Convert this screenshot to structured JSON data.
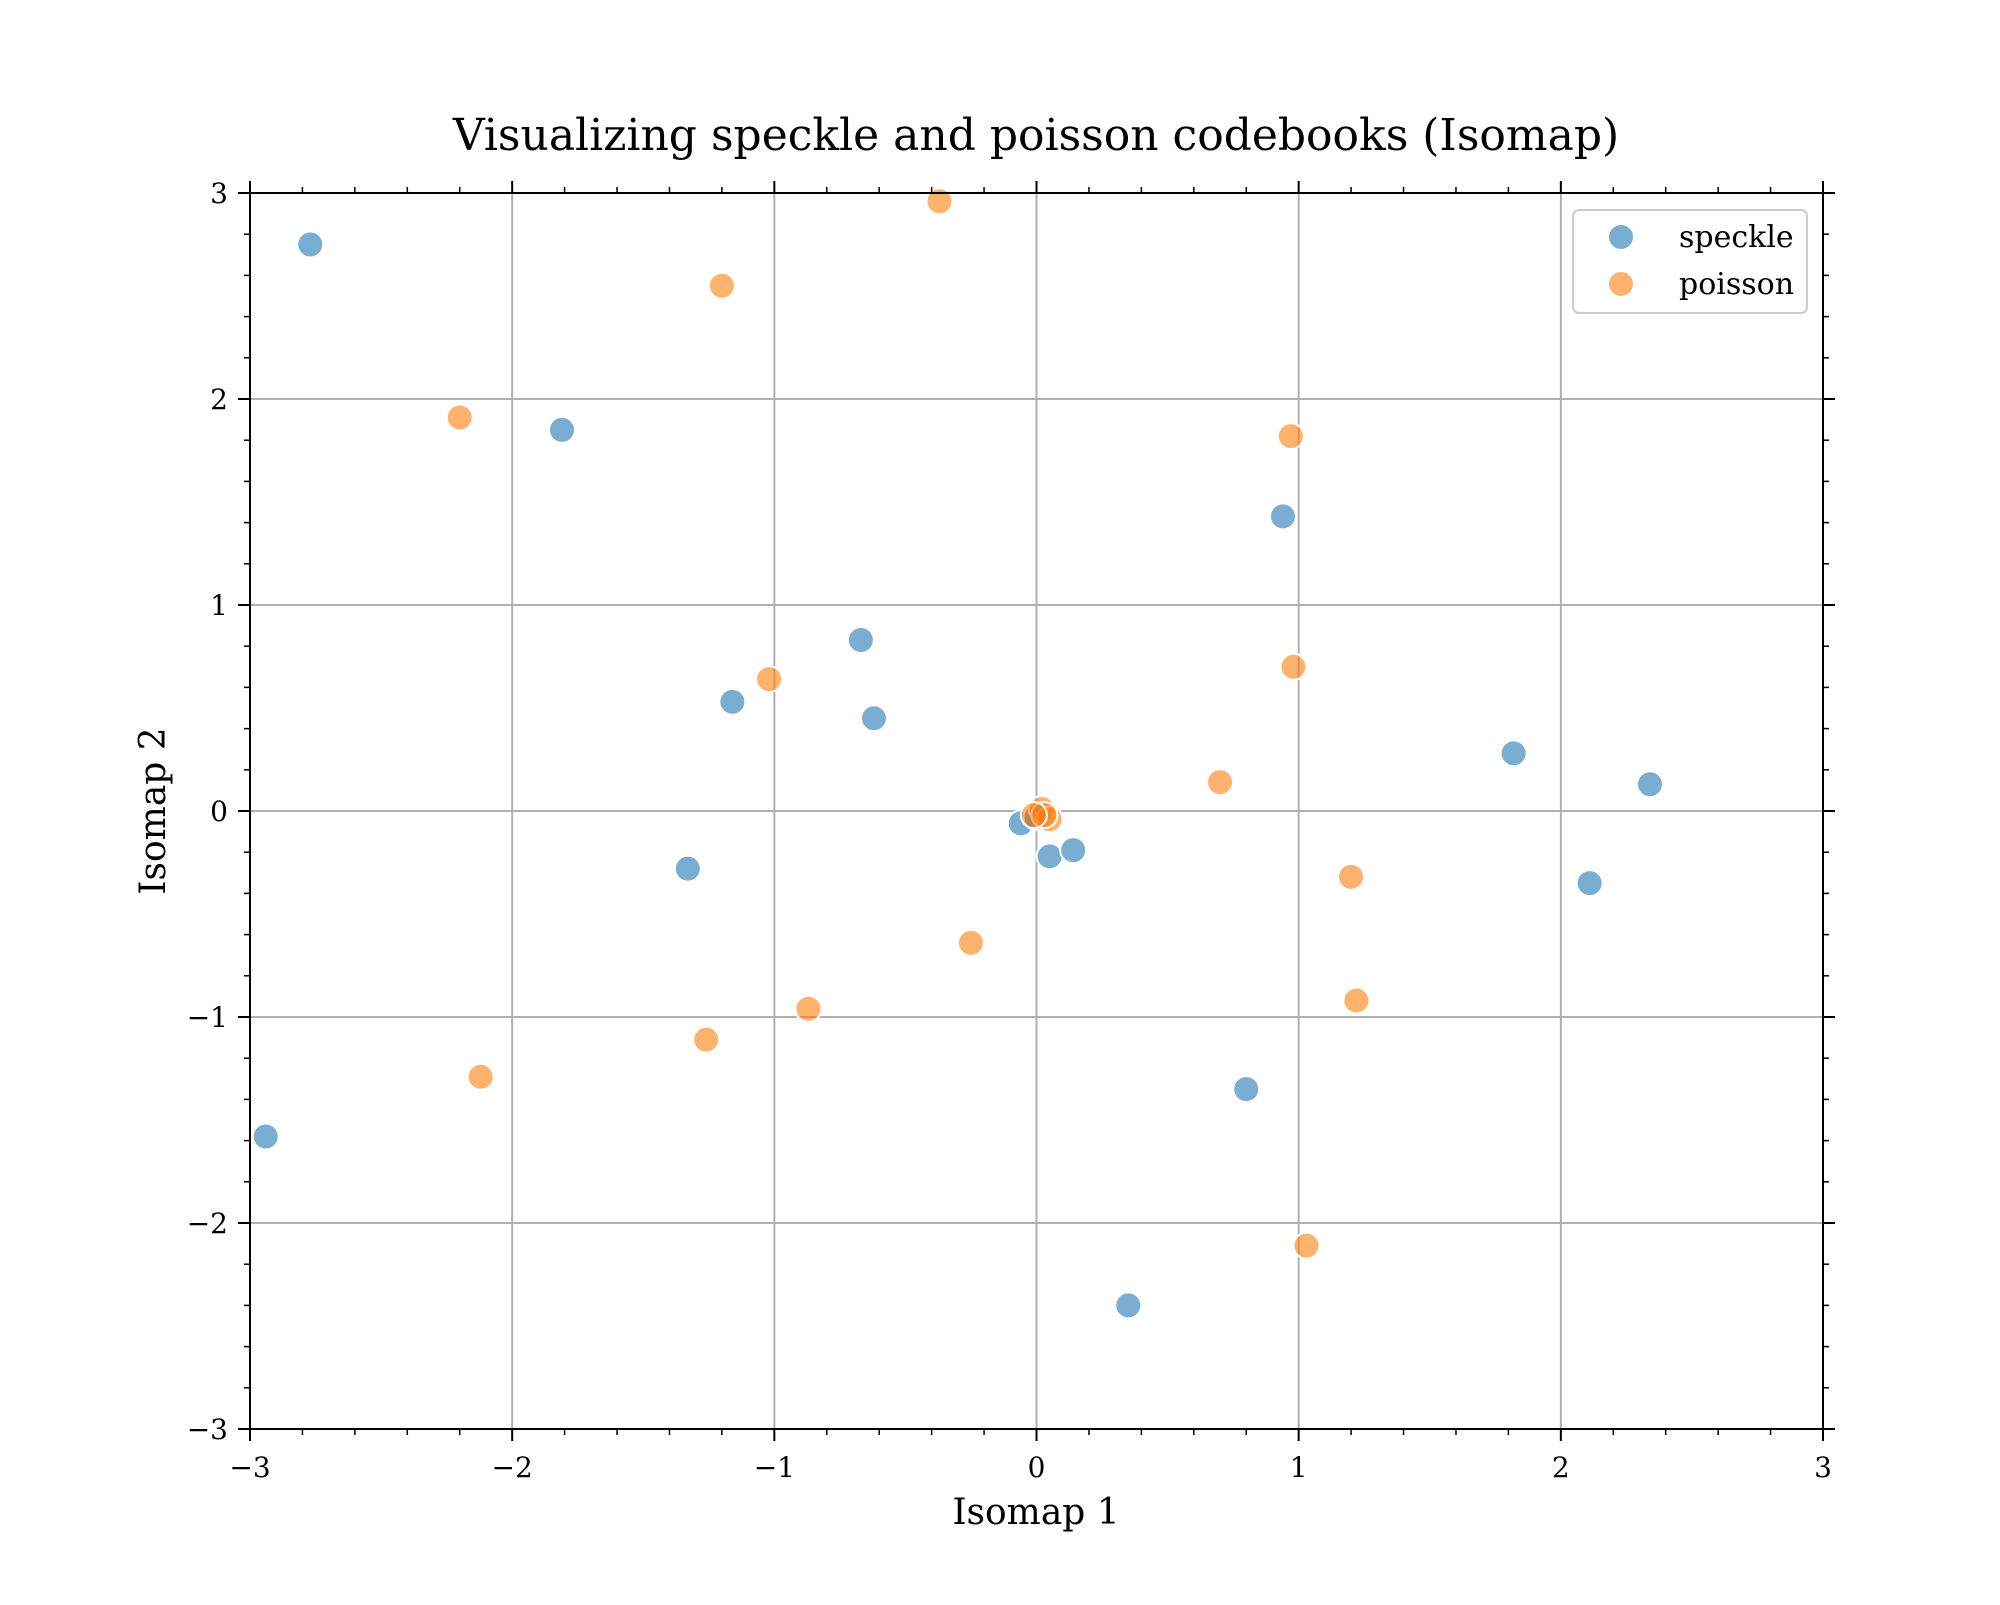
{
  "chart_data": {
    "type": "scatter",
    "title": "Visualizing speckle and poisson codebooks (Isomap)",
    "xlabel": "Isomap 1",
    "ylabel": "Isomap 2",
    "xlim": [
      -3,
      3
    ],
    "ylim": [
      -3,
      3
    ],
    "xticks": [
      -3,
      -2,
      -1,
      0,
      1,
      2,
      3
    ],
    "yticks": [
      -3,
      -2,
      -1,
      0,
      1,
      2,
      3
    ],
    "xtick_labels": [
      "−3",
      "−2",
      "−1",
      "0",
      "1",
      "2",
      "3"
    ],
    "ytick_labels": [
      "−3",
      "−2",
      "−1",
      "0",
      "1",
      "2",
      "3"
    ],
    "grid": true,
    "legend_position": "top-right",
    "series": [
      {
        "name": "speckle",
        "color": "#1f77b4",
        "points": [
          [
            -2.77,
            2.75
          ],
          [
            -1.81,
            1.85
          ],
          [
            -0.67,
            0.83
          ],
          [
            -1.16,
            0.53
          ],
          [
            -0.62,
            0.45
          ],
          [
            -1.33,
            -0.28
          ],
          [
            -2.94,
            -1.58
          ],
          [
            0.35,
            -2.4
          ],
          [
            0.8,
            -1.35
          ],
          [
            0.94,
            1.43
          ],
          [
            1.82,
            0.28
          ],
          [
            2.34,
            0.13
          ],
          [
            2.11,
            -0.35
          ],
          [
            0.05,
            -0.22
          ],
          [
            0.14,
            -0.19
          ],
          [
            -0.06,
            -0.06
          ],
          [
            0.0,
            -0.03
          ]
        ]
      },
      {
        "name": "poisson",
        "color": "#ff7f0e",
        "points": [
          [
            -0.37,
            2.96
          ],
          [
            -1.2,
            2.55
          ],
          [
            -2.2,
            1.91
          ],
          [
            0.97,
            1.82
          ],
          [
            -1.02,
            0.64
          ],
          [
            0.98,
            0.7
          ],
          [
            0.7,
            0.14
          ],
          [
            1.2,
            -0.32
          ],
          [
            -0.25,
            -0.64
          ],
          [
            -0.87,
            -0.96
          ],
          [
            -1.26,
            -1.11
          ],
          [
            -2.12,
            -1.29
          ],
          [
            1.22,
            -0.92
          ],
          [
            1.03,
            -2.11
          ],
          [
            0.02,
            0.01
          ],
          [
            0.05,
            -0.04
          ],
          [
            0.03,
            -0.02
          ],
          [
            -0.01,
            -0.02
          ]
        ]
      }
    ]
  }
}
